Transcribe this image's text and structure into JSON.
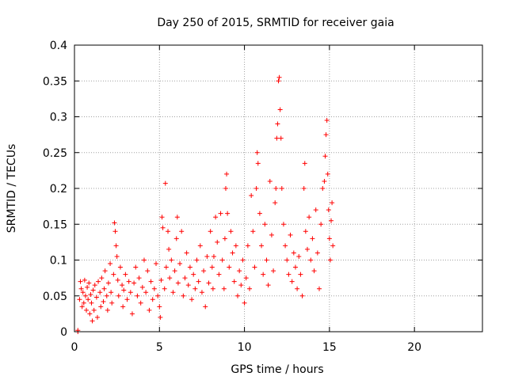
{
  "colors": {
    "series": "#ff0000",
    "axis": "#000000",
    "grid": "#a0a0a0",
    "background": "#ffffff"
  },
  "chart_data": {
    "type": "scatter",
    "title": "Day 250 of 2015, SRMTID for receiver gaia",
    "xlabel": "GPS time / hours",
    "ylabel": "SRMTID / TECUs",
    "xlim": [
      0,
      24
    ],
    "ylim": [
      0,
      0.4
    ],
    "x_ticks": [
      0,
      5,
      10,
      15,
      20
    ],
    "x_tick_labels": [
      "0",
      "5",
      "10",
      "15",
      "20"
    ],
    "y_ticks": [
      0,
      0.05,
      0.1,
      0.15,
      0.2,
      0.25,
      0.3,
      0.35,
      0.4
    ],
    "y_tick_labels": [
      "0",
      "0.05",
      "0.1",
      "0.15",
      "0.2",
      "0.25",
      "0.3",
      "0.35",
      "0.4"
    ],
    "grid": true,
    "marker": "+",
    "series": [
      {
        "name": "SRMTID",
        "points": [
          [
            0.2,
            0.0
          ],
          [
            0.2,
            0.002
          ],
          [
            0.3,
            0.045
          ],
          [
            0.35,
            0.07
          ],
          [
            0.4,
            0.06
          ],
          [
            0.45,
            0.035
          ],
          [
            0.5,
            0.055
          ],
          [
            0.55,
            0.04
          ],
          [
            0.6,
            0.072
          ],
          [
            0.65,
            0.05
          ],
          [
            0.7,
            0.03
          ],
          [
            0.75,
            0.062
          ],
          [
            0.8,
            0.045
          ],
          [
            0.85,
            0.068
          ],
          [
            0.9,
            0.025
          ],
          [
            0.95,
            0.052
          ],
          [
            1.0,
            0.04
          ],
          [
            1.05,
            0.015
          ],
          [
            1.1,
            0.058
          ],
          [
            1.15,
            0.03
          ],
          [
            1.2,
            0.065
          ],
          [
            1.3,
            0.048
          ],
          [
            1.35,
            0.02
          ],
          [
            1.4,
            0.07
          ],
          [
            1.5,
            0.055
          ],
          [
            1.55,
            0.035
          ],
          [
            1.6,
            0.075
          ],
          [
            1.7,
            0.042
          ],
          [
            1.75,
            0.06
          ],
          [
            1.8,
            0.085
          ],
          [
            1.9,
            0.05
          ],
          [
            1.95,
            0.03
          ],
          [
            2.0,
            0.068
          ],
          [
            2.1,
            0.095
          ],
          [
            2.15,
            0.055
          ],
          [
            2.2,
            0.04
          ],
          [
            2.3,
            0.08
          ],
          [
            2.35,
            0.152
          ],
          [
            2.4,
            0.14
          ],
          [
            2.45,
            0.12
          ],
          [
            2.5,
            0.105
          ],
          [
            2.55,
            0.072
          ],
          [
            2.6,
            0.05
          ],
          [
            2.7,
            0.09
          ],
          [
            2.8,
            0.065
          ],
          [
            2.85,
            0.035
          ],
          [
            2.9,
            0.058
          ],
          [
            3.0,
            0.08
          ],
          [
            3.1,
            0.045
          ],
          [
            3.2,
            0.07
          ],
          [
            3.3,
            0.055
          ],
          [
            3.4,
            0.025
          ],
          [
            3.5,
            0.068
          ],
          [
            3.6,
            0.09
          ],
          [
            3.7,
            0.05
          ],
          [
            3.8,
            0.075
          ],
          [
            3.9,
            0.04
          ],
          [
            4.0,
            0.062
          ],
          [
            4.1,
            0.1
          ],
          [
            4.2,
            0.055
          ],
          [
            4.3,
            0.085
          ],
          [
            4.4,
            0.03
          ],
          [
            4.5,
            0.07
          ],
          [
            4.6,
            0.045
          ],
          [
            4.7,
            0.06
          ],
          [
            4.8,
            0.095
          ],
          [
            4.9,
            0.05
          ],
          [
            5.0,
            0.035
          ],
          [
            5.05,
            0.02
          ],
          [
            5.1,
            0.072
          ],
          [
            5.15,
            0.16
          ],
          [
            5.2,
            0.145
          ],
          [
            5.3,
            0.06
          ],
          [
            5.35,
            0.207
          ],
          [
            5.4,
            0.09
          ],
          [
            5.5,
            0.14
          ],
          [
            5.55,
            0.115
          ],
          [
            5.6,
            0.075
          ],
          [
            5.7,
            0.1
          ],
          [
            5.8,
            0.055
          ],
          [
            5.9,
            0.085
          ],
          [
            6.0,
            0.13
          ],
          [
            6.05,
            0.16
          ],
          [
            6.1,
            0.068
          ],
          [
            6.2,
            0.095
          ],
          [
            6.3,
            0.14
          ],
          [
            6.4,
            0.05
          ],
          [
            6.5,
            0.075
          ],
          [
            6.6,
            0.11
          ],
          [
            6.7,
            0.065
          ],
          [
            6.8,
            0.09
          ],
          [
            6.9,
            0.045
          ],
          [
            7.0,
            0.08
          ],
          [
            7.1,
            0.06
          ],
          [
            7.2,
            0.1
          ],
          [
            7.3,
            0.07
          ],
          [
            7.4,
            0.12
          ],
          [
            7.5,
            0.055
          ],
          [
            7.6,
            0.085
          ],
          [
            7.7,
            0.035
          ],
          [
            7.8,
            0.105
          ],
          [
            7.9,
            0.068
          ],
          [
            8.0,
            0.14
          ],
          [
            8.1,
            0.09
          ],
          [
            8.15,
            0.06
          ],
          [
            8.2,
            0.105
          ],
          [
            8.3,
            0.16
          ],
          [
            8.4,
            0.125
          ],
          [
            8.5,
            0.08
          ],
          [
            8.6,
            0.165
          ],
          [
            8.7,
            0.1
          ],
          [
            8.8,
            0.06
          ],
          [
            8.85,
            0.13
          ],
          [
            8.9,
            0.2
          ],
          [
            8.95,
            0.22
          ],
          [
            9.0,
            0.165
          ],
          [
            9.1,
            0.09
          ],
          [
            9.2,
            0.14
          ],
          [
            9.3,
            0.11
          ],
          [
            9.4,
            0.07
          ],
          [
            9.5,
            0.12
          ],
          [
            9.6,
            0.05
          ],
          [
            9.7,
            0.085
          ],
          [
            9.8,
            0.065
          ],
          [
            9.9,
            0.1
          ],
          [
            10.0,
            0.04
          ],
          [
            10.1,
            0.075
          ],
          [
            10.2,
            0.12
          ],
          [
            10.3,
            0.06
          ],
          [
            10.4,
            0.19
          ],
          [
            10.5,
            0.14
          ],
          [
            10.6,
            0.09
          ],
          [
            10.7,
            0.2
          ],
          [
            10.75,
            0.25
          ],
          [
            10.8,
            0.235
          ],
          [
            10.9,
            0.165
          ],
          [
            11.0,
            0.12
          ],
          [
            11.1,
            0.08
          ],
          [
            11.2,
            0.15
          ],
          [
            11.3,
            0.1
          ],
          [
            11.4,
            0.065
          ],
          [
            11.5,
            0.21
          ],
          [
            11.6,
            0.135
          ],
          [
            11.7,
            0.085
          ],
          [
            11.8,
            0.18
          ],
          [
            11.85,
            0.2
          ],
          [
            11.9,
            0.27
          ],
          [
            11.95,
            0.29
          ],
          [
            12.0,
            0.35
          ],
          [
            12.05,
            0.355
          ],
          [
            12.1,
            0.31
          ],
          [
            12.15,
            0.27
          ],
          [
            12.2,
            0.2
          ],
          [
            12.3,
            0.15
          ],
          [
            12.4,
            0.12
          ],
          [
            12.5,
            0.1
          ],
          [
            12.6,
            0.08
          ],
          [
            12.7,
            0.135
          ],
          [
            12.8,
            0.07
          ],
          [
            12.9,
            0.11
          ],
          [
            13.0,
            0.09
          ],
          [
            13.1,
            0.06
          ],
          [
            13.2,
            0.105
          ],
          [
            13.3,
            0.08
          ],
          [
            13.4,
            0.05
          ],
          [
            13.5,
            0.2
          ],
          [
            13.55,
            0.235
          ],
          [
            13.6,
            0.14
          ],
          [
            13.7,
            0.115
          ],
          [
            13.8,
            0.16
          ],
          [
            13.9,
            0.1
          ],
          [
            14.0,
            0.13
          ],
          [
            14.1,
            0.085
          ],
          [
            14.2,
            0.17
          ],
          [
            14.3,
            0.11
          ],
          [
            14.4,
            0.06
          ],
          [
            14.5,
            0.15
          ],
          [
            14.6,
            0.2
          ],
          [
            14.7,
            0.21
          ],
          [
            14.75,
            0.245
          ],
          [
            14.8,
            0.275
          ],
          [
            14.85,
            0.295
          ],
          [
            14.9,
            0.22
          ],
          [
            14.95,
            0.17
          ],
          [
            15.0,
            0.13
          ],
          [
            15.05,
            0.1
          ],
          [
            15.1,
            0.155
          ],
          [
            15.15,
            0.18
          ],
          [
            15.2,
            0.12
          ]
        ]
      }
    ]
  }
}
